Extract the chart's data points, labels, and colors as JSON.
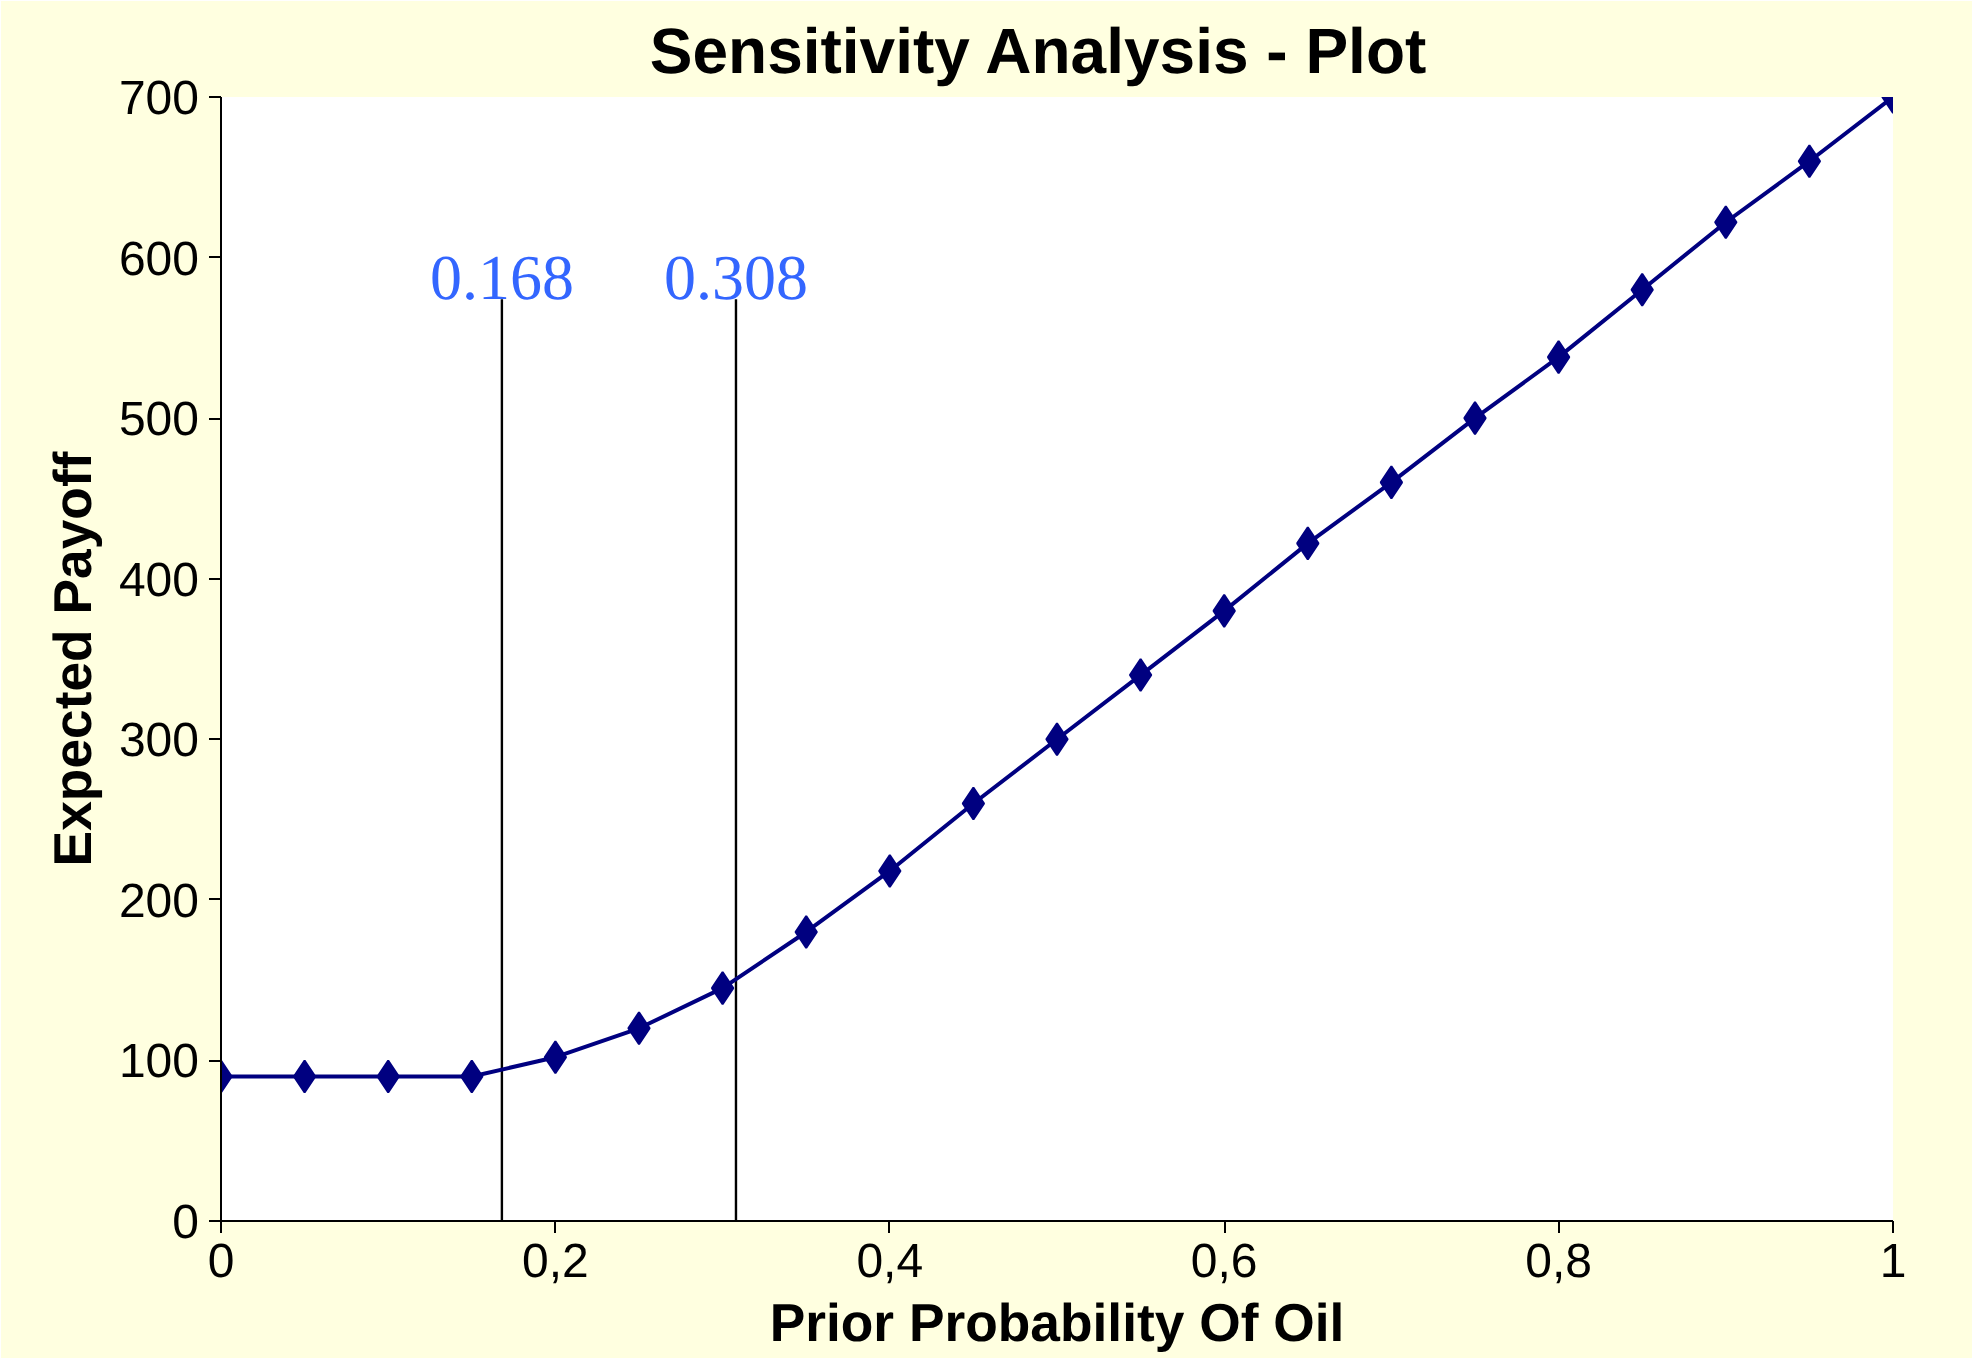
{
  "chart_data": {
    "type": "line",
    "title": "Sensitivity Analysis  -  Plot",
    "xlabel": "Prior Probability Of Oil",
    "ylabel": "Expected Payoff",
    "x": [
      0,
      0.05,
      0.1,
      0.15,
      0.2,
      0.25,
      0.3,
      0.35,
      0.4,
      0.45,
      0.5,
      0.55,
      0.6,
      0.65,
      0.7,
      0.75,
      0.8,
      0.85,
      0.9,
      0.95,
      1
    ],
    "series": [
      {
        "color": "#000080",
        "values": [
          90,
          90,
          90,
          90,
          102,
          120,
          145,
          180,
          218,
          260,
          300,
          340,
          380,
          422,
          460,
          500,
          538,
          580,
          622,
          660,
          700
        ]
      }
    ],
    "xlim": [
      0,
      1
    ],
    "ylim": [
      0,
      700
    ],
    "xticks": [
      0,
      {
        "value": 0.2,
        "label": "0,2"
      },
      {
        "value": 0.4,
        "label": "0,4"
      },
      {
        "value": 0.6,
        "label": "0,6"
      },
      {
        "value": 0.8,
        "label": "0,8"
      },
      1
    ],
    "yticks": [
      0,
      100,
      200,
      300,
      400,
      500,
      600,
      700
    ],
    "ref_lines": [
      {
        "axis": "x",
        "value": 0.168,
        "label": "0.168",
        "color": "#000000"
      },
      {
        "axis": "x",
        "value": 0.308,
        "label": "0.308",
        "color": "#000000"
      }
    ],
    "marker": "diamond",
    "grid": false
  }
}
